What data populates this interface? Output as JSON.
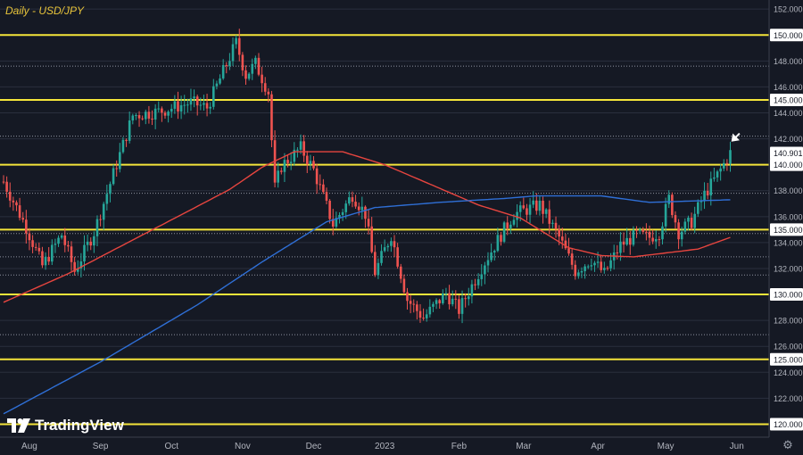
{
  "chart_title": "Daily - USD/JPY",
  "brand": "TradingView",
  "icons": {
    "settings": "gear-icon",
    "pointer": "arrow-pointer-icon"
  },
  "colors": {
    "background": "#151924",
    "up": "#26a69a",
    "down": "#ef5350",
    "level_line": "#f5e53a",
    "ma_fast": "#e6453f",
    "ma_slow": "#2f6fd6",
    "grid": "#2a2f3d",
    "axis_text": "#b2b5be",
    "price_label_bg": "#ffffff"
  },
  "chart_data": {
    "type": "candlestick",
    "title": "Daily - USD/JPY",
    "ylim": [
      119.0,
      152.7
    ],
    "x_tick_labels": [
      "Aug",
      "Sep",
      "Oct",
      "Nov",
      "Dec",
      "2023",
      "Feb",
      "Mar",
      "Apr",
      "May",
      "Jun"
    ],
    "y_tick_labels": [
      "120.000",
      "122.000",
      "124.000",
      "125.000",
      "126.000",
      "128.000",
      "130.000",
      "132.000",
      "134.000",
      "135.000",
      "136.000",
      "138.000",
      "140.000",
      "140.901",
      "142.000",
      "144.000",
      "145.000",
      "146.000",
      "148.000",
      "150.000",
      "152.000"
    ],
    "horizontal_levels": [
      {
        "value": 150.0,
        "label": "150.000",
        "style": "solid"
      },
      {
        "value": 145.0,
        "label": "145.000",
        "style": "solid"
      },
      {
        "value": 140.0,
        "label": "140.000",
        "style": "solid"
      },
      {
        "value": 135.0,
        "label": "135.000",
        "style": "solid"
      },
      {
        "value": 130.0,
        "label": "130.000",
        "style": "solid"
      },
      {
        "value": 125.0,
        "label": "125.000",
        "style": "solid"
      },
      {
        "value": 120.0,
        "label": "120.000",
        "style": "solid"
      },
      {
        "value": 147.6,
        "style": "dotted"
      },
      {
        "value": 142.2,
        "style": "dotted"
      },
      {
        "value": 137.8,
        "style": "dotted"
      },
      {
        "value": 134.7,
        "style": "dotted"
      },
      {
        "value": 132.9,
        "style": "dotted"
      },
      {
        "value": 131.5,
        "style": "dotted"
      },
      {
        "value": 126.9,
        "style": "dotted"
      }
    ],
    "current_price": 140.901,
    "current_price_label": "140.901",
    "anchors": [
      [
        0,
        138.7
      ],
      [
        7,
        135.2
      ],
      [
        12,
        132.2
      ],
      [
        18,
        134.6
      ],
      [
        22,
        131.8
      ],
      [
        28,
        134.8
      ],
      [
        40,
        143.8
      ],
      [
        48,
        144.1
      ],
      [
        58,
        144.8
      ],
      [
        63,
        144.4
      ],
      [
        72,
        149.4
      ],
      [
        75,
        146.9
      ],
      [
        78,
        147.8
      ],
      [
        82,
        145.6
      ],
      [
        84,
        138.2
      ],
      [
        86,
        139.9
      ],
      [
        92,
        141.3
      ],
      [
        96,
        139.6
      ],
      [
        102,
        135.4
      ],
      [
        108,
        137.7
      ],
      [
        112,
        136.2
      ],
      [
        115,
        131.7
      ],
      [
        120,
        134.6
      ],
      [
        125,
        129.6
      ],
      [
        130,
        128.2
      ],
      [
        137,
        130.1
      ],
      [
        141,
        128.8
      ],
      [
        148,
        132.1
      ],
      [
        154,
        134.6
      ],
      [
        158,
        136.2
      ],
      [
        166,
        136.9
      ],
      [
        172,
        134.4
      ],
      [
        177,
        131.8
      ],
      [
        182,
        132.7
      ],
      [
        186,
        131.6
      ],
      [
        191,
        133.8
      ],
      [
        196,
        134.6
      ],
      [
        200,
        134.4
      ],
      [
        203,
        134.8
      ],
      [
        206,
        137.4
      ],
      [
        209,
        134.8
      ],
      [
        213,
        135.6
      ],
      [
        217,
        137.7
      ],
      [
        221,
        139.2
      ],
      [
        225,
        140.9
      ]
    ],
    "ma_fast": [
      [
        0,
        129.4
      ],
      [
        20,
        131.6
      ],
      [
        40,
        134.2
      ],
      [
        57,
        136.4
      ],
      [
        70,
        138.1
      ],
      [
        80,
        139.8
      ],
      [
        90,
        141.0
      ],
      [
        105,
        141.0
      ],
      [
        118,
        140.0
      ],
      [
        133,
        138.4
      ],
      [
        147,
        136.9
      ],
      [
        160,
        135.9
      ],
      [
        175,
        133.6
      ],
      [
        185,
        133.0
      ],
      [
        195,
        132.9
      ],
      [
        205,
        133.2
      ],
      [
        215,
        133.5
      ],
      [
        225,
        134.4
      ]
    ],
    "ma_slow": [
      [
        0,
        120.8
      ],
      [
        30,
        124.8
      ],
      [
        60,
        129.2
      ],
      [
        80,
        132.5
      ],
      [
        100,
        135.6
      ],
      [
        115,
        136.7
      ],
      [
        135,
        137.1
      ],
      [
        155,
        137.4
      ],
      [
        165,
        137.6
      ],
      [
        185,
        137.6
      ],
      [
        200,
        137.1
      ],
      [
        225,
        137.3
      ]
    ]
  }
}
